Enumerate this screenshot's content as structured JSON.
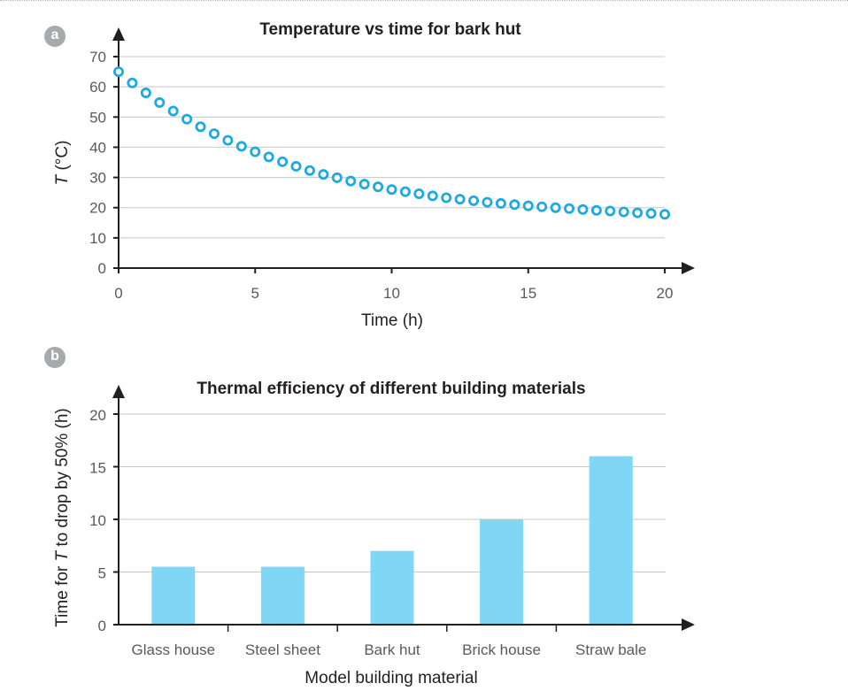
{
  "chart_data": [
    {
      "panel": "a",
      "type": "scatter",
      "title": "Temperature vs time for bark hut",
      "xlabel": "Time (h)",
      "ylabel_italic": "T",
      "ylabel_rest": " (°C)",
      "xlim": [
        0,
        20
      ],
      "ylim": [
        0,
        70
      ],
      "xticks": [
        0,
        5,
        10,
        15,
        20
      ],
      "yticks": [
        0,
        10,
        20,
        30,
        40,
        50,
        60,
        70
      ],
      "grid": true,
      "marker_color": "#1fa9e1",
      "x": [
        0,
        0.5,
        1,
        1.5,
        2,
        2.5,
        3,
        3.5,
        4,
        4.5,
        5,
        5.5,
        6,
        6.5,
        7,
        7.5,
        8,
        8.5,
        9,
        9.5,
        10,
        10.5,
        11,
        11.5,
        12,
        12.5,
        13,
        13.5,
        14,
        14.5,
        15,
        15.5,
        16,
        16.5,
        17,
        17.5,
        18,
        18.5,
        19,
        19.5,
        20
      ],
      "y": [
        65,
        61.3,
        58,
        54.8,
        52,
        49.3,
        46.8,
        44.5,
        42.3,
        40.3,
        38.5,
        36.8,
        35.2,
        33.7,
        32.3,
        31.0,
        29.9,
        28.8,
        27.8,
        26.9,
        26.0,
        25.3,
        24.6,
        23.9,
        23.3,
        22.8,
        22.3,
        21.8,
        21.4,
        21.0,
        20.6,
        20.3,
        20.0,
        19.7,
        19.4,
        19.1,
        18.9,
        18.6,
        18.3,
        18.1,
        17.8
      ]
    },
    {
      "panel": "b",
      "type": "bar",
      "title": "Thermal efficiency of different building materials",
      "xlabel": "Model building material",
      "ylabel_pre": "Time for ",
      "ylabel_italic": "T",
      "ylabel_post": " to drop by 50% (h)",
      "categories": [
        "Glass house",
        "Steel sheet",
        "Bark hut",
        "Brick house",
        "Straw bale"
      ],
      "values": [
        5.5,
        5.5,
        7,
        10,
        16
      ],
      "ylim": [
        0,
        20
      ],
      "yticks": [
        0,
        5,
        10,
        15,
        20
      ],
      "grid": true,
      "bar_color": "#80d6f5"
    }
  ]
}
